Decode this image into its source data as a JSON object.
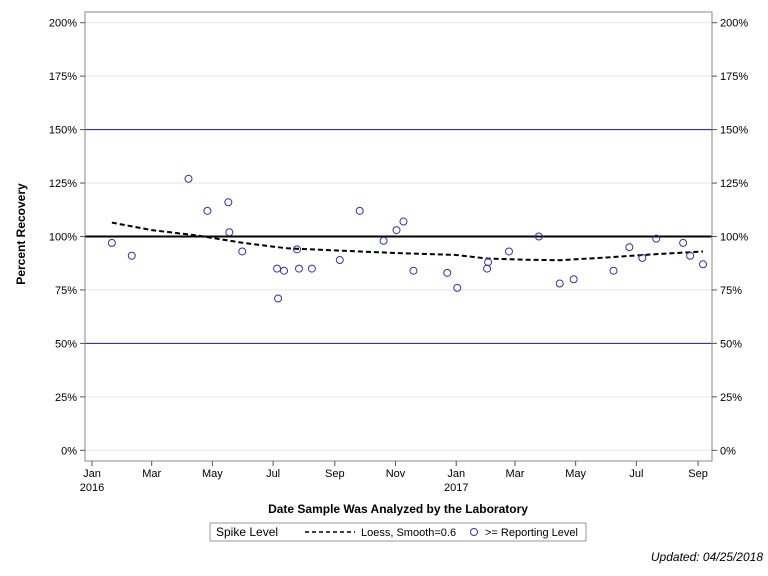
{
  "chart_data": {
    "type": "scatter",
    "xlabel": "Date Sample Was Analyzed by the Laboratory",
    "ylabel": "Percent Recovery",
    "xlim": [
      "2015-12-25",
      "2017-09-15"
    ],
    "ylim": [
      -5,
      205
    ],
    "yticks": [
      0,
      25,
      50,
      75,
      100,
      125,
      150,
      175,
      200
    ],
    "ytick_labels": [
      "0%",
      "25%",
      "50%",
      "75%",
      "100%",
      "125%",
      "150%",
      "175%",
      "200%"
    ],
    "xticks": [
      {
        "date": "2016-01-01",
        "label": "Jan",
        "sublabel": "2016"
      },
      {
        "date": "2016-03-01",
        "label": "Mar",
        "sublabel": ""
      },
      {
        "date": "2016-05-01",
        "label": "May",
        "sublabel": ""
      },
      {
        "date": "2016-07-01",
        "label": "Jul",
        "sublabel": ""
      },
      {
        "date": "2016-09-01",
        "label": "Sep",
        "sublabel": ""
      },
      {
        "date": "2016-11-01",
        "label": "Nov",
        "sublabel": ""
      },
      {
        "date": "2017-01-01",
        "label": "Jan",
        "sublabel": "2017"
      },
      {
        "date": "2017-03-01",
        "label": "Mar",
        "sublabel": ""
      },
      {
        "date": "2017-05-01",
        "label": "May",
        "sublabel": ""
      },
      {
        "date": "2017-07-01",
        "label": "Jul",
        "sublabel": ""
      },
      {
        "date": "2017-09-01",
        "label": "Sep",
        "sublabel": ""
      }
    ],
    "reference_lines": [
      {
        "y": 150,
        "color": "#1a1aa0",
        "width": 1
      },
      {
        "y": 100,
        "color": "#000000",
        "width": 2
      },
      {
        "y": 50,
        "color": "#1a1aa0",
        "width": 1
      }
    ],
    "series": [
      {
        "name": ">= Reporting Level",
        "marker": "circle-open",
        "color": "#3333aa",
        "points": [
          {
            "x": "2016-01-21",
            "y": 97
          },
          {
            "x": "2016-02-10",
            "y": 91
          },
          {
            "x": "2016-04-07",
            "y": 127
          },
          {
            "x": "2016-04-26",
            "y": 112
          },
          {
            "x": "2016-05-17",
            "y": 116
          },
          {
            "x": "2016-05-18",
            "y": 102
          },
          {
            "x": "2016-05-31",
            "y": 93
          },
          {
            "x": "2016-07-05",
            "y": 85
          },
          {
            "x": "2016-07-06",
            "y": 71
          },
          {
            "x": "2016-07-12",
            "y": 84
          },
          {
            "x": "2016-07-25",
            "y": 94
          },
          {
            "x": "2016-07-27",
            "y": 85
          },
          {
            "x": "2016-08-09",
            "y": 85
          },
          {
            "x": "2016-09-06",
            "y": 89
          },
          {
            "x": "2016-09-26",
            "y": 112
          },
          {
            "x": "2016-10-20",
            "y": 98
          },
          {
            "x": "2016-11-02",
            "y": 103
          },
          {
            "x": "2016-11-09",
            "y": 107
          },
          {
            "x": "2016-11-19",
            "y": 84
          },
          {
            "x": "2016-12-23",
            "y": 83
          },
          {
            "x": "2017-01-02",
            "y": 76
          },
          {
            "x": "2017-02-01",
            "y": 85
          },
          {
            "x": "2017-02-02",
            "y": 88
          },
          {
            "x": "2017-02-23",
            "y": 93
          },
          {
            "x": "2017-03-25",
            "y": 100
          },
          {
            "x": "2017-04-15",
            "y": 78
          },
          {
            "x": "2017-04-29",
            "y": 80
          },
          {
            "x": "2017-06-08",
            "y": 84
          },
          {
            "x": "2017-06-24",
            "y": 95
          },
          {
            "x": "2017-07-07",
            "y": 90
          },
          {
            "x": "2017-07-21",
            "y": 99
          },
          {
            "x": "2017-08-17",
            "y": 97
          },
          {
            "x": "2017-08-24",
            "y": 91
          },
          {
            "x": "2017-09-06",
            "y": 87
          }
        ]
      },
      {
        "name": "Loess, Smooth=0.6",
        "style": "dashed",
        "color": "#000000",
        "points": [
          {
            "x": "2016-01-21",
            "y": 106.5
          },
          {
            "x": "2016-03-01",
            "y": 103
          },
          {
            "x": "2016-04-15",
            "y": 100.5
          },
          {
            "x": "2016-06-01",
            "y": 97
          },
          {
            "x": "2016-07-15",
            "y": 94.5
          },
          {
            "x": "2016-09-01",
            "y": 93.5
          },
          {
            "x": "2016-11-01",
            "y": 92.3
          },
          {
            "x": "2016-12-31",
            "y": 91.4
          },
          {
            "x": "2017-02-01",
            "y": 89.7
          },
          {
            "x": "2017-03-15",
            "y": 89.1
          },
          {
            "x": "2017-04-15",
            "y": 88.9
          },
          {
            "x": "2017-06-01",
            "y": 90.2
          },
          {
            "x": "2017-07-15",
            "y": 91.6
          },
          {
            "x": "2017-09-06",
            "y": 93
          }
        ]
      }
    ],
    "legend": {
      "title": "Spike Level",
      "position": "bottom-center",
      "entries": [
        {
          "type": "line",
          "label": "Loess, Smooth=0.6"
        },
        {
          "type": "marker",
          "label": ">= Reporting Level"
        }
      ]
    },
    "footer": "Updated: 04/25/2018"
  }
}
